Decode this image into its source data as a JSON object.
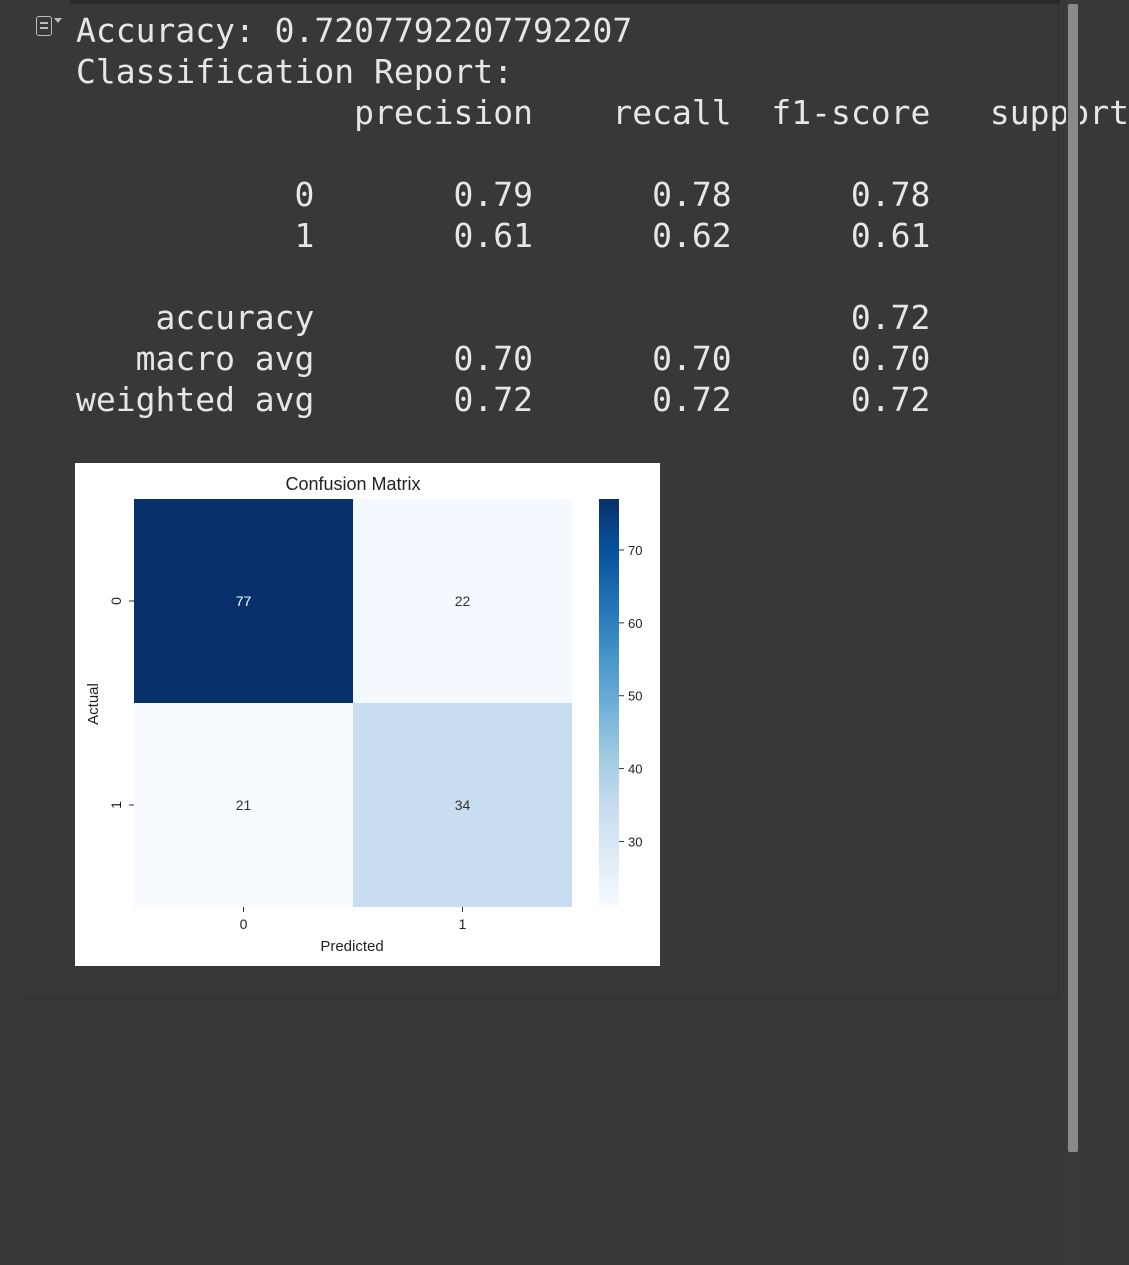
{
  "output": {
    "lines": [
      "Accuracy: 0.7207792207792207",
      "Classification Report:",
      "              precision    recall  f1-score   support",
      "",
      "           0       0.79      0.78      0.78",
      "           1       0.61      0.62      0.61",
      "",
      "    accuracy                           0.72",
      "   macro avg       0.70      0.70      0.70",
      "weighted avg       0.72      0.72      0.72"
    ]
  },
  "icons": {
    "output_toggle": "output-toggle-icon"
  },
  "chart_data": {
    "type": "heatmap",
    "title": "Confusion Matrix",
    "xlabel": "Predicted",
    "ylabel": "Actual",
    "x_categories": [
      "0",
      "1"
    ],
    "y_categories": [
      "0",
      "1"
    ],
    "values": [
      [
        77,
        22
      ],
      [
        21,
        34
      ]
    ],
    "colormap": "Blues",
    "colorbar": {
      "vmin": 21,
      "vmax": 77,
      "ticks": [
        30,
        40,
        50,
        60,
        70
      ]
    },
    "colors": {
      "low": "#f7fbff",
      "mid": "#6baed6",
      "high": "#08306b"
    }
  }
}
